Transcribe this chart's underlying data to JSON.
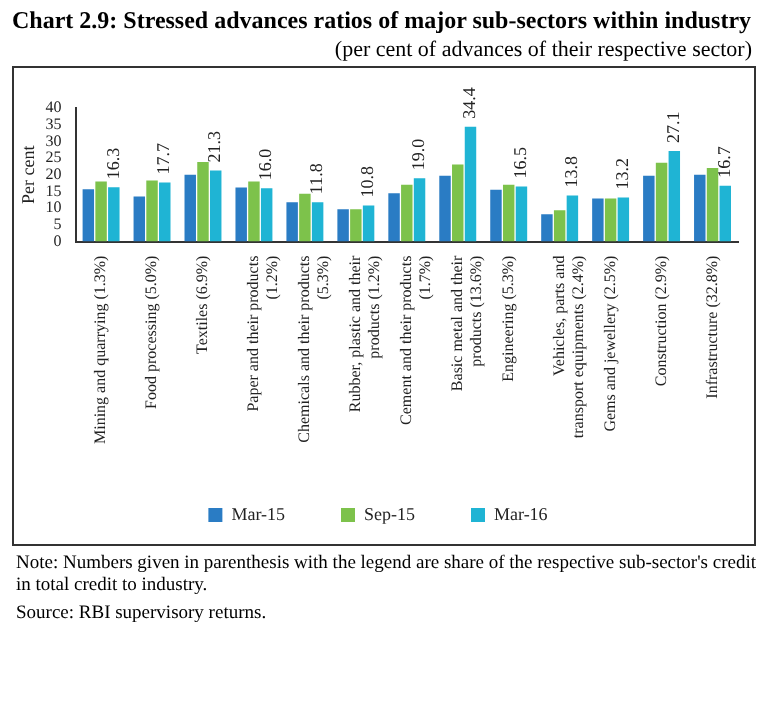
{
  "chart_data": {
    "type": "bar",
    "title": "Chart 2.9: Stressed advances ratios of major sub-sectors within industry",
    "subtitle": "(per cent of advances of their respective sector)",
    "ylabel": "Per cent",
    "categories": [
      "Mining and quarrying (1.3%)",
      "Food processing (5.0%)",
      "Textiles (6.9%)",
      "Paper and their products (1.2%)",
      "Chemicals and their products (5.3%)",
      "Rubber, plastic and their products (1.2%)",
      "Cement and their products (1.7%)",
      "Basic metal and their products (13.6%)",
      "Engineering (5.3%)",
      "Vehicles, parts and transport equipments (2.4%)",
      "Gems and jewellery (2.5%)",
      "Construction (2.9%)",
      "Infrastructure (32.8%)"
    ],
    "series": [
      {
        "name": "Mar-15",
        "color": "#2a7cc4",
        "values": [
          15.7,
          13.5,
          20,
          16.2,
          11.8,
          9.7,
          14.5,
          19.7,
          15.5,
          8.2,
          12.9,
          19.7,
          20
        ]
      },
      {
        "name": "Sep-15",
        "color": "#7dc24b",
        "values": [
          18,
          18.3,
          23.8,
          18,
          14.3,
          9.7,
          17,
          23.1,
          17,
          9.4,
          12.9,
          23.6,
          22
        ]
      },
      {
        "name": "Mar-16",
        "color": "#1fb4d4",
        "values": [
          16.3,
          17.7,
          21.3,
          16.0,
          11.8,
          10.8,
          19.0,
          34.4,
          16.5,
          13.8,
          13.2,
          27.1,
          16.7
        ],
        "value_labels": [
          "16.3",
          "17.7",
          "21.3",
          "16.0",
          "11.8",
          "10.8",
          "19.0",
          "34.4",
          "16.5",
          "13.8",
          "13.2",
          "27.1",
          "16.7"
        ]
      }
    ],
    "ylim": [
      0,
      40
    ],
    "yticks": [
      0,
      5,
      10,
      15,
      20,
      25,
      30,
      35,
      40
    ],
    "grid": false,
    "legend": "bottom",
    "annotations": [
      "Note: Numbers given in parenthesis with the legend are share of the respective sub-sector's credit in total credit to industry.",
      "Source: RBI supervisory returns."
    ]
  }
}
